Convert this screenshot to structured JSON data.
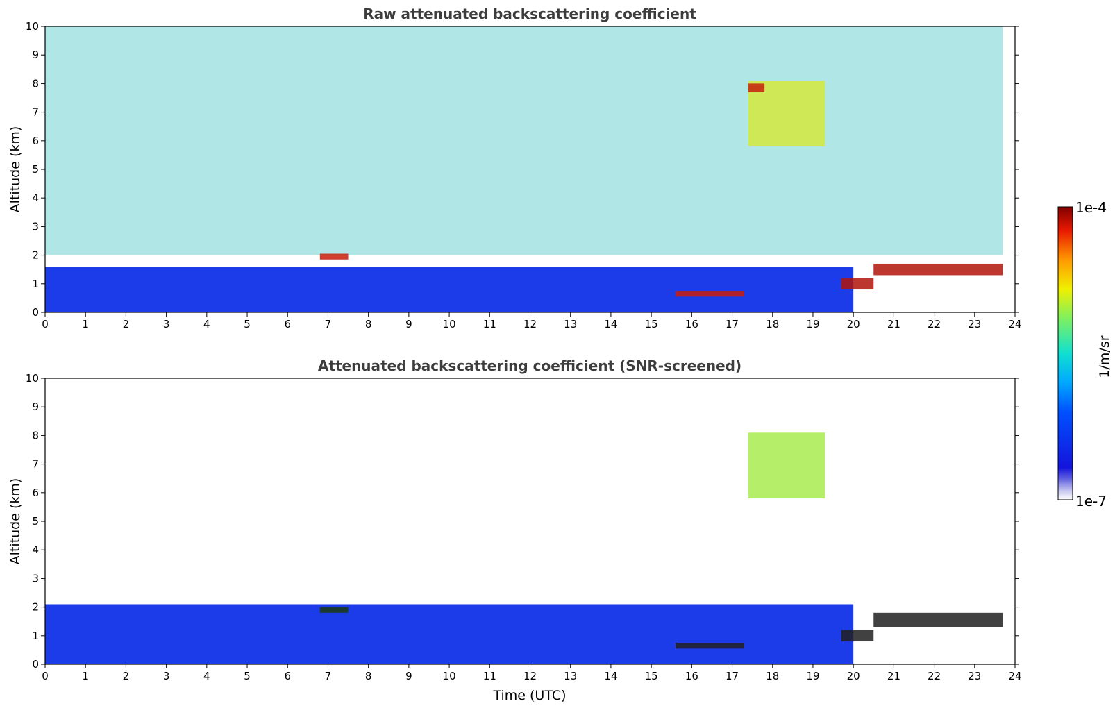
{
  "chart_data": [
    {
      "type": "heatmap",
      "title": "Raw attenuated backscattering coefficient",
      "xlabel": "",
      "ylabel": "Altitude (km)",
      "xlim": [
        0,
        24
      ],
      "ylim": [
        0,
        10
      ],
      "x_ticks": [
        "0",
        "1",
        "2",
        "3",
        "4",
        "5",
        "6",
        "7",
        "8",
        "9",
        "10",
        "11",
        "12",
        "13",
        "14",
        "15",
        "16",
        "17",
        "18",
        "19",
        "20",
        "21",
        "22",
        "23",
        "24"
      ],
      "y_ticks": [
        "0",
        "1",
        "2",
        "3",
        "4",
        "5",
        "6",
        "7",
        "8",
        "9",
        "10"
      ],
      "data_end_hour": 23.7,
      "colormap": "jet",
      "features": [
        {
          "kind": "boundary_layer",
          "x": [
            0,
            20
          ],
          "top_km": 1.6,
          "color": "#1030e8"
        },
        {
          "kind": "noise_field",
          "x": [
            0,
            23.7
          ],
          "y": [
            2,
            10
          ],
          "color": "#52c8c8"
        },
        {
          "kind": "cloud",
          "x": [
            6.8,
            7.5
          ],
          "y": [
            1.85,
            2.05
          ],
          "color": "#c81e0a"
        },
        {
          "kind": "cloud",
          "x": [
            17.4,
            19.3
          ],
          "y": [
            5.8,
            8.1
          ],
          "color": "#d4e83c"
        },
        {
          "kind": "cloud",
          "x": [
            17.4,
            17.8
          ],
          "y": [
            7.7,
            8.0
          ],
          "color": "#c81e0a"
        },
        {
          "kind": "cloud",
          "x": [
            19.7,
            20.5
          ],
          "y": [
            0.8,
            1.2
          ],
          "color": "#b01408"
        },
        {
          "kind": "cloud",
          "x": [
            20.5,
            23.7
          ],
          "y": [
            1.3,
            1.7
          ],
          "color": "#b01408"
        },
        {
          "kind": "cloud",
          "x": [
            15.6,
            17.3
          ],
          "y": [
            0.55,
            0.75
          ],
          "color": "#c81e0a"
        }
      ]
    },
    {
      "type": "heatmap",
      "title": "Attenuated backscattering coefficient (SNR-screened)",
      "xlabel": "Time (UTC)",
      "ylabel": "Altitude (km)",
      "xlim": [
        0,
        24
      ],
      "ylim": [
        0,
        10
      ],
      "x_ticks": [
        "0",
        "1",
        "2",
        "3",
        "4",
        "5",
        "6",
        "7",
        "8",
        "9",
        "10",
        "11",
        "12",
        "13",
        "14",
        "15",
        "16",
        "17",
        "18",
        "19",
        "20",
        "21",
        "22",
        "23",
        "24"
      ],
      "y_ticks": [
        "0",
        "1",
        "2",
        "3",
        "4",
        "5",
        "6",
        "7",
        "8",
        "9",
        "10"
      ],
      "data_end_hour": 23.7,
      "colormap": "jet",
      "features": [
        {
          "kind": "boundary_layer",
          "x": [
            0,
            20
          ],
          "top_km": 2.1,
          "color": "#1030e8"
        },
        {
          "kind": "cloud",
          "x": [
            6.8,
            7.5
          ],
          "y": [
            1.8,
            2.0
          ],
          "color": "#1a3a10"
        },
        {
          "kind": "cloud",
          "x": [
            17.4,
            19.3
          ],
          "y": [
            5.8,
            8.1
          ],
          "color": "#a8ec50"
        },
        {
          "kind": "cloud",
          "x": [
            19.7,
            20.5
          ],
          "y": [
            0.8,
            1.2
          ],
          "color": "#202020"
        },
        {
          "kind": "cloud",
          "x": [
            20.5,
            23.7
          ],
          "y": [
            1.3,
            1.8
          ],
          "color": "#202020"
        },
        {
          "kind": "cloud",
          "x": [
            15.6,
            17.3
          ],
          "y": [
            0.55,
            0.75
          ],
          "color": "#202020"
        }
      ]
    }
  ],
  "colorbar": {
    "label": "1/m/sr",
    "max_label": "1e-4",
    "min_label": "1e-7",
    "scale": "log",
    "range": [
      1e-07,
      0.0001
    ]
  }
}
